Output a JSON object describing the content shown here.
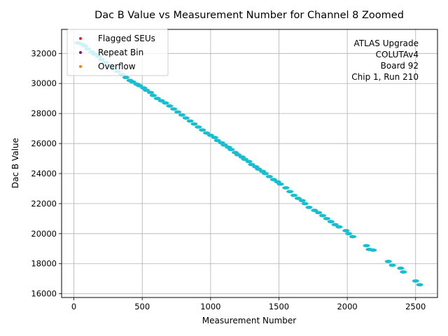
{
  "chart_data": {
    "type": "scatter",
    "title": "Dac B Value vs Measurement Number for Channel 8 Zoomed",
    "xlabel": "Measurement Number",
    "ylabel": "Dac B Value",
    "xlim": [
      -90,
      2660
    ],
    "ylim": [
      15750,
      33600
    ],
    "xticks": [
      0,
      500,
      1000,
      1500,
      2000,
      2500
    ],
    "yticks": [
      16000,
      18000,
      20000,
      22000,
      24000,
      26000,
      28000,
      30000,
      32000
    ],
    "grid": true,
    "legend_position": "upper-left",
    "legend": [
      {
        "label": "Flagged SEUs",
        "color": "#d62728"
      },
      {
        "label": "Repeat Bin",
        "color": "#7f0f7e"
      },
      {
        "label": "Overflow",
        "color": "#ff7f0e"
      }
    ],
    "annotation": [
      "ATLAS Upgrade",
      "COLUTAv4",
      "Board 92",
      "Chip 1, Run 210"
    ],
    "series": [
      {
        "color": "#17becf",
        "x": [
          30,
          60,
          80,
          100,
          130,
          150,
          180,
          200,
          230,
          260,
          290,
          320,
          350,
          380,
          410,
          430,
          460,
          480,
          510,
          530,
          560,
          580,
          610,
          640,
          670,
          700,
          730,
          760,
          790,
          820,
          850,
          880,
          910,
          940,
          970,
          1000,
          1030,
          1050,
          1080,
          1100,
          1130,
          1150,
          1180,
          1200,
          1230,
          1250,
          1280,
          1300,
          1330,
          1350,
          1380,
          1400,
          1430,
          1460,
          1490,
          1510,
          1550,
          1580,
          1610,
          1640,
          1670,
          1690,
          1720,
          1760,
          1790,
          1820,
          1850,
          1880,
          1910,
          1940,
          1990,
          2010,
          2040,
          2140,
          2160,
          2190,
          2300,
          2330,
          2390,
          2410,
          2500,
          2530
        ],
        "y": [
          32700,
          32600,
          32500,
          32300,
          32100,
          31950,
          31800,
          31600,
          31400,
          31200,
          31000,
          30800,
          30600,
          30400,
          30200,
          30100,
          29950,
          29850,
          29700,
          29550,
          29400,
          29200,
          29000,
          28850,
          28700,
          28500,
          28300,
          28100,
          27900,
          27700,
          27500,
          27300,
          27100,
          26900,
          26700,
          26550,
          26400,
          26200,
          26050,
          25900,
          25750,
          25600,
          25400,
          25250,
          25100,
          24950,
          24800,
          24600,
          24450,
          24300,
          24150,
          24000,
          23800,
          23600,
          23450,
          23300,
          23050,
          22800,
          22550,
          22350,
          22200,
          22000,
          21750,
          21550,
          21400,
          21200,
          21000,
          20800,
          20600,
          20450,
          20200,
          20000,
          19800,
          19200,
          18950,
          18900,
          18150,
          17900,
          17700,
          17450,
          16850,
          16600
        ]
      }
    ]
  }
}
